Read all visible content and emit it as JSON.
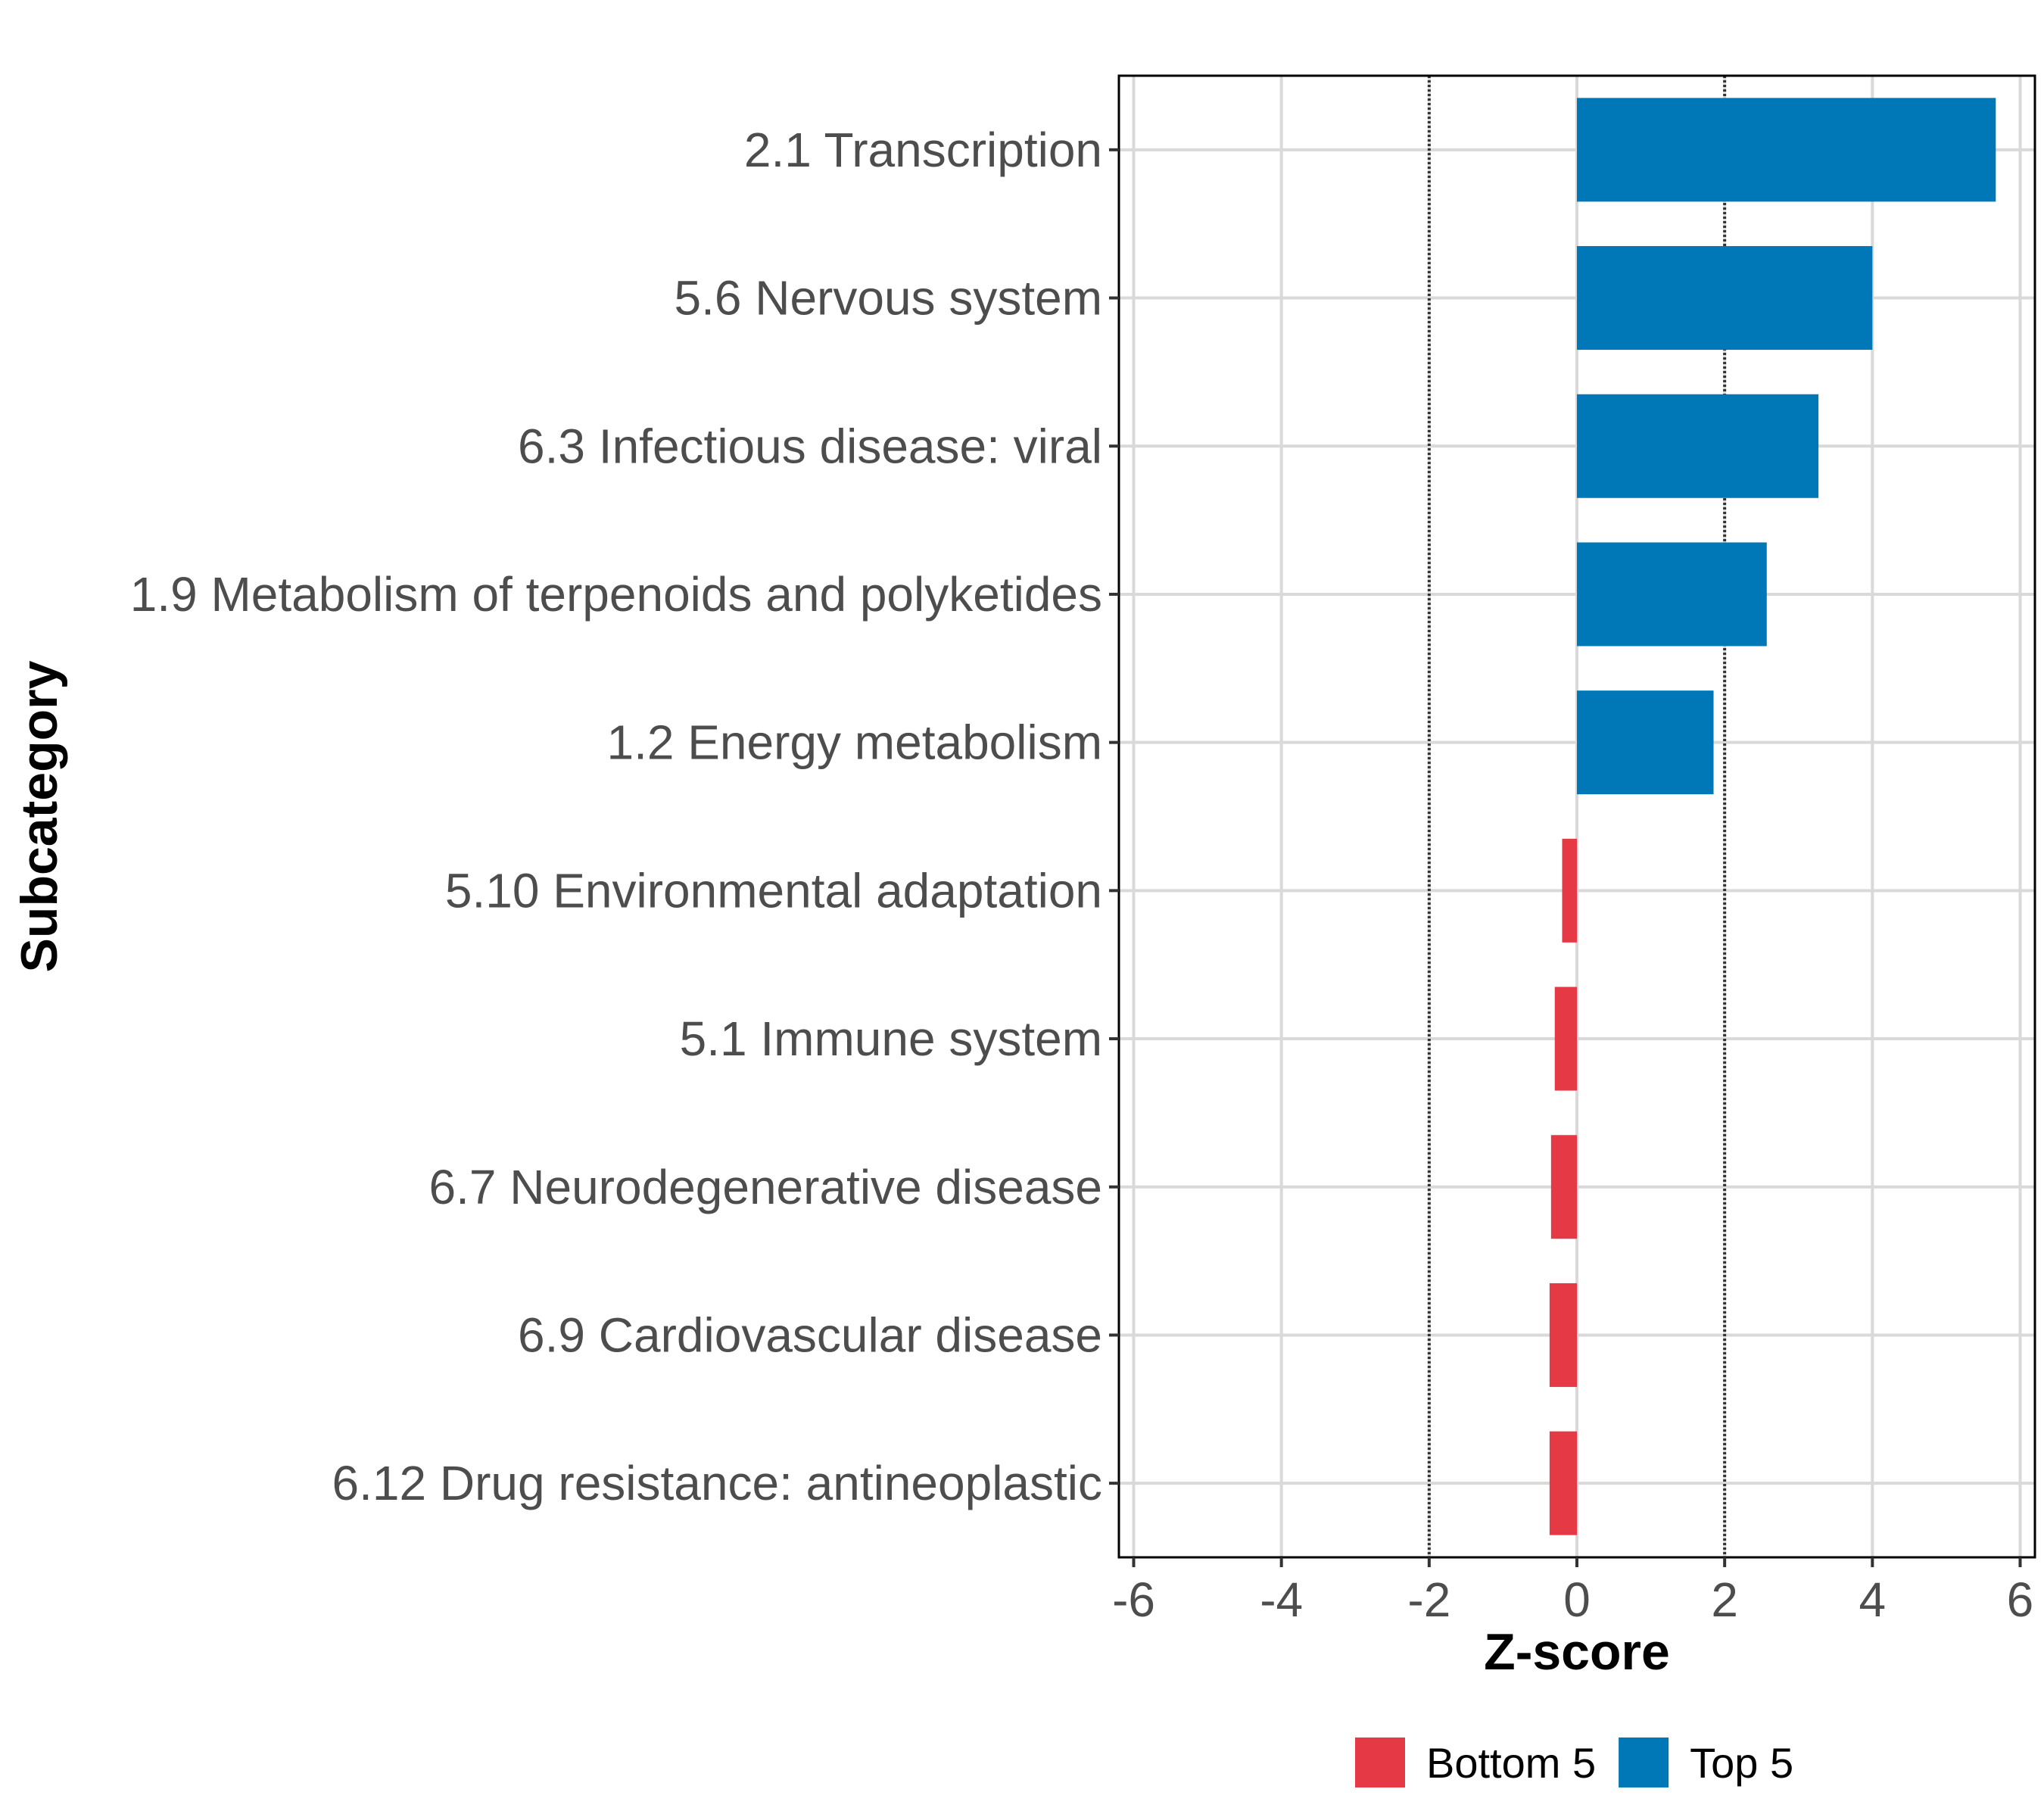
{
  "chart_data": {
    "type": "bar",
    "orientation": "horizontal",
    "categories": [
      "2.1 Transcription",
      "5.6 Nervous system",
      "6.3 Infectious disease: viral",
      "1.9 Metabolism of terpenoids and polyketides",
      "1.2 Energy metabolism",
      "5.10 Environmental adaptation",
      "5.1 Immune system",
      "6.7 Neurodegenerative disease",
      "6.9 Cardiovascular disease",
      "6.12 Drug resistance: antineoplastic"
    ],
    "values": [
      5.67,
      4.0,
      3.27,
      2.57,
      1.85,
      -0.2,
      -0.3,
      -0.35,
      -0.37,
      -0.37
    ],
    "groups": [
      "Top 5",
      "Top 5",
      "Top 5",
      "Top 5",
      "Top 5",
      "Bottom 5",
      "Bottom 5",
      "Bottom 5",
      "Bottom 5",
      "Bottom 5"
    ],
    "xlabel": "Z-score",
    "ylabel": "Subcategory",
    "xlim": [
      -6.2,
      6.2
    ],
    "xticks": [
      -6,
      -4,
      -2,
      0,
      2,
      4,
      6
    ],
    "xtick_labels": [
      "-6",
      "-4",
      "-2",
      "0",
      "2",
      "4",
      "6"
    ],
    "reference_lines": [
      -2,
      2
    ],
    "grid": true,
    "legend": {
      "position": "bottom",
      "entries": [
        {
          "label": "Bottom 5",
          "color": "#e63946"
        },
        {
          "label": "Top 5",
          "color": "#0077b6"
        }
      ]
    },
    "colors": {
      "Top 5": "#0077b6",
      "Bottom 5": "#e63946"
    }
  }
}
